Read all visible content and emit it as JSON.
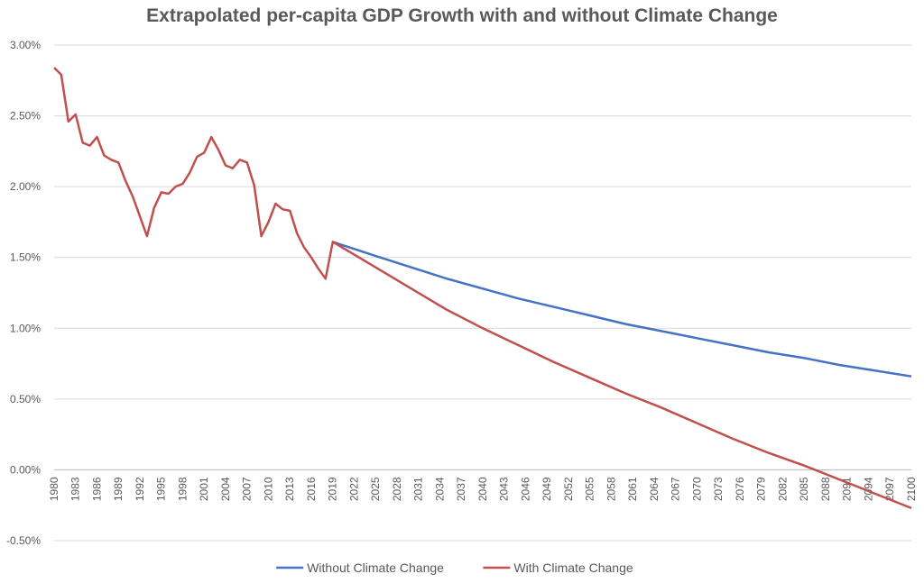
{
  "chart_data": {
    "type": "line",
    "title": "Extrapolated per-capita GDP Growth with and without Climate Change",
    "xlabel": "",
    "ylabel": "",
    "x_range": [
      1980,
      2100
    ],
    "ylim": [
      -0.5,
      3.0
    ],
    "y_ticks": [
      3.0,
      2.5,
      2.0,
      1.5,
      1.0,
      0.5,
      0.0,
      -0.5
    ],
    "y_tick_labels": [
      "3.00%",
      "2.50%",
      "2.00%",
      "1.50%",
      "1.00%",
      "0.50%",
      "0.00%",
      "-0.50%"
    ],
    "x_ticks": [
      1980,
      1983,
      1986,
      1989,
      1992,
      1995,
      1998,
      2001,
      2004,
      2007,
      2010,
      2013,
      2016,
      2019,
      2022,
      2025,
      2028,
      2031,
      2034,
      2037,
      2040,
      2043,
      2046,
      2049,
      2052,
      2055,
      2058,
      2061,
      2064,
      2067,
      2070,
      2073,
      2076,
      2079,
      2082,
      2085,
      2088,
      2091,
      2094,
      2097,
      2100
    ],
    "x_tick_labels": [
      "1980",
      "1983",
      "1986",
      "1989",
      "1992",
      "1995",
      "1998",
      "2001",
      "2004",
      "2007",
      "2010",
      "2013",
      "2016",
      "2019",
      "2022",
      "2025",
      "2028",
      "2031",
      "2034",
      "2037",
      "2040",
      "2043",
      "2046",
      "2049",
      "2052",
      "2055",
      "2058",
      "2061",
      "2064",
      "2067",
      "2070",
      "2073",
      "2076",
      "2079",
      "2082",
      "2085",
      "2088",
      "2091",
      "2094",
      "2097",
      "2100"
    ],
    "grid": true,
    "legend_position": "bottom",
    "series": [
      {
        "name": "Without Climate Change",
        "color": "#4472c4",
        "x": [
          2019,
          2025,
          2030,
          2035,
          2040,
          2045,
          2050,
          2055,
          2060,
          2065,
          2070,
          2075,
          2080,
          2085,
          2090,
          2095,
          2100
        ],
        "values": [
          1.61,
          1.51,
          1.43,
          1.35,
          1.28,
          1.21,
          1.15,
          1.09,
          1.03,
          0.98,
          0.93,
          0.88,
          0.83,
          0.79,
          0.74,
          0.7,
          0.66
        ]
      },
      {
        "name": "With Climate Change",
        "color": "#c0504d",
        "x": [
          1980,
          1981,
          1982,
          1983,
          1984,
          1985,
          1986,
          1987,
          1988,
          1989,
          1990,
          1991,
          1992,
          1993,
          1994,
          1995,
          1996,
          1997,
          1998,
          1999,
          2000,
          2001,
          2002,
          2003,
          2004,
          2005,
          2006,
          2007,
          2008,
          2009,
          2010,
          2011,
          2012,
          2013,
          2014,
          2015,
          2016,
          2017,
          2018,
          2019,
          2025,
          2030,
          2035,
          2040,
          2045,
          2050,
          2055,
          2060,
          2065,
          2070,
          2075,
          2080,
          2085,
          2090,
          2095,
          2100
        ],
        "values": [
          2.84,
          2.79,
          2.46,
          2.51,
          2.31,
          2.29,
          2.35,
          2.22,
          2.19,
          2.17,
          2.04,
          1.93,
          1.79,
          1.65,
          1.85,
          1.96,
          1.95,
          2.0,
          2.02,
          2.1,
          2.21,
          2.24,
          2.35,
          2.26,
          2.15,
          2.13,
          2.19,
          2.17,
          2.01,
          1.65,
          1.75,
          1.88,
          1.84,
          1.83,
          1.67,
          1.57,
          1.5,
          1.42,
          1.35,
          1.61,
          1.43,
          1.28,
          1.13,
          1.0,
          0.88,
          0.76,
          0.65,
          0.54,
          0.44,
          0.33,
          0.22,
          0.12,
          0.03,
          -0.07,
          -0.17,
          -0.27
        ]
      }
    ]
  }
}
